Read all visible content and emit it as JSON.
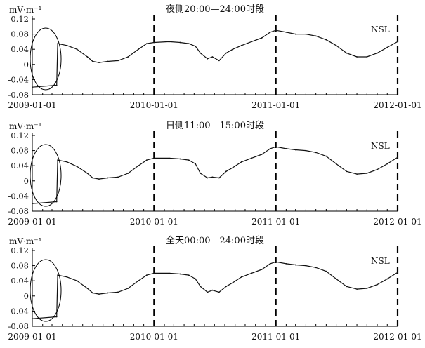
{
  "panels": [
    {
      "title": "夜侧20:00—24:00时段",
      "unit": "mV·m⁻¹",
      "station": "NSL",
      "yticks": [
        "0.12",
        "0.08",
        "0.04",
        "0",
        "-0.04",
        "-0.08"
      ],
      "xticks": [
        "2009-01-01",
        "2010-01-01",
        "2011-01-01",
        "2012-01-01"
      ]
    },
    {
      "title": "日侧11:00—15:00时段",
      "unit": "mV·m⁻¹",
      "station": "NSL",
      "yticks": [
        "0.12",
        "0.08",
        "0.04",
        "0",
        "-0.04",
        "-0.08"
      ],
      "xticks": [
        "2009-01-01",
        "2010-01-01",
        "2011-01-01",
        "2012-01-01"
      ]
    },
    {
      "title": "全天00:00—24:00时段",
      "unit": "mV·m⁻¹",
      "station": "NSL",
      "yticks": [
        "0.12",
        "0.08",
        "0.04",
        "0",
        "-0.04",
        "-0.08"
      ],
      "xticks": [
        "2009-01-01",
        "2010-01-01",
        "2011-01-01",
        "2012-01-01"
      ]
    }
  ],
  "chart_data": [
    {
      "type": "line",
      "title": "夜侧20:00—24:00时段",
      "ylabel": "mV·m⁻¹",
      "ylim": [
        -0.08,
        0.12
      ],
      "xlim": [
        "2009-01-01",
        "2012-01-01"
      ],
      "series": [
        {
          "name": "NSL",
          "x": [
            "2009-01-01",
            "2009-03-15",
            "2009-03-18",
            "2009-04-15",
            "2009-05-15",
            "2009-06-15",
            "2009-07-01",
            "2009-07-20",
            "2009-08-15",
            "2009-09-15",
            "2009-10-15",
            "2009-11-15",
            "2009-12-10",
            "2010-01-01",
            "2010-02-15",
            "2010-03-20",
            "2010-04-15",
            "2010-05-05",
            "2010-05-20",
            "2010-06-10",
            "2010-06-25",
            "2010-07-15",
            "2010-08-05",
            "2010-08-25",
            "2010-09-20",
            "2010-10-20",
            "2010-11-20",
            "2010-12-15",
            "2011-01-01",
            "2011-02-01",
            "2011-03-01",
            "2011-04-01",
            "2011-05-01",
            "2011-06-01",
            "2011-07-01",
            "2011-08-01",
            "2011-09-01",
            "2011-10-01",
            "2011-11-01",
            "2011-12-01",
            "2012-01-01"
          ],
          "values": [
            -0.06,
            -0.055,
            0.055,
            0.05,
            0.04,
            0.02,
            0.008,
            0.005,
            0.008,
            0.01,
            0.02,
            0.04,
            0.055,
            0.058,
            0.06,
            0.058,
            0.055,
            0.048,
            0.03,
            0.015,
            0.02,
            0.01,
            0.03,
            0.04,
            0.05,
            0.06,
            0.07,
            0.085,
            0.09,
            0.085,
            0.08,
            0.08,
            0.075,
            0.065,
            0.05,
            0.03,
            0.02,
            0.02,
            0.03,
            0.045,
            0.06
          ]
        }
      ]
    },
    {
      "type": "line",
      "title": "日侧11:00—15:00时段",
      "ylabel": "mV·m⁻¹",
      "ylim": [
        -0.08,
        0.12
      ],
      "xlim": [
        "2009-01-01",
        "2012-01-01"
      ],
      "series": [
        {
          "name": "NSL",
          "x": [
            "2009-01-01",
            "2009-03-15",
            "2009-03-18",
            "2009-04-15",
            "2009-05-15",
            "2009-06-15",
            "2009-07-01",
            "2009-07-20",
            "2009-08-15",
            "2009-09-15",
            "2009-10-15",
            "2009-11-15",
            "2009-12-10",
            "2010-01-01",
            "2010-02-15",
            "2010-03-20",
            "2010-04-15",
            "2010-05-05",
            "2010-05-20",
            "2010-06-10",
            "2010-06-25",
            "2010-07-15",
            "2010-08-05",
            "2010-08-25",
            "2010-09-20",
            "2010-10-20",
            "2010-11-20",
            "2010-12-15",
            "2011-01-01",
            "2011-02-01",
            "2011-03-01",
            "2011-04-01",
            "2011-05-01",
            "2011-06-01",
            "2011-07-01",
            "2011-08-01",
            "2011-09-01",
            "2011-10-01",
            "2011-11-01",
            "2011-12-01",
            "2012-01-01"
          ],
          "values": [
            -0.06,
            -0.055,
            0.055,
            0.05,
            0.038,
            0.02,
            0.008,
            0.005,
            0.008,
            0.01,
            0.02,
            0.04,
            0.055,
            0.06,
            0.06,
            0.058,
            0.055,
            0.045,
            0.02,
            0.008,
            0.01,
            0.008,
            0.025,
            0.035,
            0.05,
            0.06,
            0.07,
            0.085,
            0.09,
            0.085,
            0.082,
            0.08,
            0.075,
            0.065,
            0.045,
            0.025,
            0.018,
            0.02,
            0.03,
            0.045,
            0.062
          ]
        }
      ]
    },
    {
      "type": "line",
      "title": "全天00:00—24:00时段",
      "ylabel": "mV·m⁻¹",
      "ylim": [
        -0.08,
        0.12
      ],
      "xlim": [
        "2009-01-01",
        "2012-01-01"
      ],
      "series": [
        {
          "name": "NSL",
          "x": [
            "2009-01-01",
            "2009-03-15",
            "2009-03-18",
            "2009-04-15",
            "2009-05-15",
            "2009-06-15",
            "2009-07-01",
            "2009-07-20",
            "2009-08-15",
            "2009-09-15",
            "2009-10-15",
            "2009-11-15",
            "2009-12-10",
            "2010-01-01",
            "2010-02-15",
            "2010-03-20",
            "2010-04-15",
            "2010-05-05",
            "2010-05-20",
            "2010-06-10",
            "2010-06-25",
            "2010-07-15",
            "2010-08-05",
            "2010-08-25",
            "2010-09-20",
            "2010-10-20",
            "2010-11-20",
            "2010-12-15",
            "2011-01-01",
            "2011-02-01",
            "2011-03-01",
            "2011-04-01",
            "2011-05-01",
            "2011-06-01",
            "2011-07-01",
            "2011-08-01",
            "2011-09-01",
            "2011-10-01",
            "2011-11-01",
            "2011-12-01",
            "2012-01-01"
          ],
          "values": [
            -0.06,
            -0.055,
            0.055,
            0.05,
            0.04,
            0.02,
            0.008,
            0.005,
            0.008,
            0.01,
            0.02,
            0.04,
            0.055,
            0.06,
            0.06,
            0.058,
            0.055,
            0.045,
            0.025,
            0.01,
            0.015,
            0.01,
            0.025,
            0.035,
            0.05,
            0.06,
            0.07,
            0.085,
            0.09,
            0.085,
            0.082,
            0.08,
            0.075,
            0.065,
            0.045,
            0.025,
            0.018,
            0.02,
            0.03,
            0.045,
            0.062
          ]
        }
      ]
    }
  ]
}
